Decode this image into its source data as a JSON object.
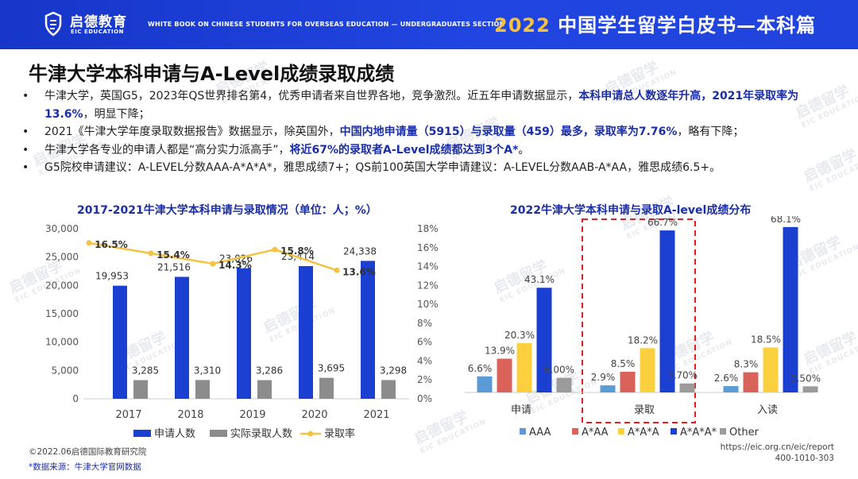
{
  "header": {
    "logo_cn": "启德教育",
    "logo_en": "EIC EDUCATION",
    "subtitle": "WHITE BOOK ON CHINESE STUDENTS FOR OVERSEAS EDUCATION — UNDERGRADUATES SECTION",
    "book_year": "2022",
    "book_title": "中国学生留学白皮书",
    "book_section": "—本科篇"
  },
  "page_title": "牛津大学本科申请与A-Level成绩录取成绩",
  "bullets": [
    {
      "plain": "牛津大学，英国G5，2023年QS世界排名第4，优秀申请者来自世界各地，竞争激烈。近五年申请数据显示，",
      "bold": "本科申请总人数逐年升高，2021年录取率为13.6%",
      "tail": "，明显下降；"
    },
    {
      "plain": "2021《牛津大学年度录取数据报告》数据显示，除英国外，",
      "bold": "中国内地申请量（5915）与录取量（459）最多，录取率为7.76%",
      "tail": "，略有下降；"
    },
    {
      "plain": "牛津大学各专业的申请人都是“高分实力派高手”，",
      "bold": "将近67%的录取者A-Level成绩都达到3个A*",
      "tail": "。"
    },
    {
      "plain": "G5院校申请建议：A-LEVEL分数AAA-A*A*A*，雅思成绩7+；QS前100英国大学申请建议：A-LEVEL分数AAB-A*AA，雅思成绩6.5+。",
      "bold": "",
      "tail": ""
    }
  ],
  "chart_data": [
    {
      "type": "bar",
      "title": "2017-2021牛津大学本科申请与录取情况（单位：人；%）",
      "categories": [
        "2017",
        "2018",
        "2019",
        "2020",
        "2021"
      ],
      "series": [
        {
          "name": "申请人数",
          "type": "bar",
          "axis": "left",
          "values": [
            19953,
            21516,
            23026,
            23414,
            24338
          ],
          "labels": [
            "19,953",
            "21,516",
            "23,026",
            "23,414",
            "24,338"
          ]
        },
        {
          "name": "实际录取人数",
          "type": "bar",
          "axis": "left",
          "values": [
            3285,
            3310,
            3286,
            3695,
            3298
          ],
          "labels": [
            "3,285",
            "3,310",
            "3,286",
            "3,695",
            "3,298"
          ]
        },
        {
          "name": "录取率",
          "type": "line",
          "axis": "right",
          "values": [
            16.5,
            15.4,
            14.3,
            15.8,
            13.6
          ],
          "labels": [
            "16.5%",
            "15.4%",
            "14.3%",
            "15.8%",
            "13.6%"
          ]
        }
      ],
      "ylim": [
        0,
        30000
      ],
      "y_ticks": [
        "0",
        "5,000",
        "10,000",
        "15,000",
        "20,000",
        "25,000",
        "30,000"
      ],
      "y2lim": [
        0,
        18
      ],
      "y2_ticks": [
        "0%",
        "2%",
        "4%",
        "6%",
        "8%",
        "10%",
        "12%",
        "14%",
        "16%",
        "18%"
      ],
      "colors": {
        "applicants": "#1a3fd1",
        "admitted": "#8c8c8c",
        "rate": "#f5c342"
      }
    },
    {
      "type": "bar",
      "title": "2022牛津大学本科申请与录取A-level成绩分布",
      "categories": [
        "申请",
        "录取",
        "入读"
      ],
      "series": [
        {
          "name": "AAA",
          "values": [
            6.6,
            2.9,
            2.6
          ],
          "labels": [
            "6.6%",
            "2.9%",
            "2.6%"
          ]
        },
        {
          "name": "A*AA",
          "values": [
            13.9,
            8.5,
            8.3
          ],
          "labels": [
            "13.9%",
            "8.5%",
            "8.3%"
          ]
        },
        {
          "name": "A*A*A",
          "values": [
            20.3,
            18.2,
            18.5
          ],
          "labels": [
            "20.3%",
            "18.2%",
            "18.5%"
          ]
        },
        {
          "name": "A*A*A*",
          "values": [
            43.1,
            66.7,
            68.1
          ],
          "labels": [
            "43.1%",
            "66.7%",
            "68.1%"
          ]
        },
        {
          "name": "Other",
          "values": [
            6.0,
            3.7,
            2.5
          ],
          "labels": [
            "6.00%",
            "3.70%",
            "2.50%"
          ]
        }
      ],
      "ylim": [
        0,
        70
      ],
      "highlight_category": "录取",
      "colors": [
        "#5b9bd5",
        "#d9635b",
        "#fbd03e",
        "#1a3fd1",
        "#9b9b9b"
      ]
    }
  ],
  "footer": {
    "copyright": "©2022.06启德国际教育研究院",
    "source": "*数据来源：牛津大学官网数据",
    "url": "https://eic.org.cn/eic/report",
    "phone": "400-1010-303"
  },
  "watermark": {
    "cn": "启德留学",
    "en": "EIC EDUCATION"
  }
}
